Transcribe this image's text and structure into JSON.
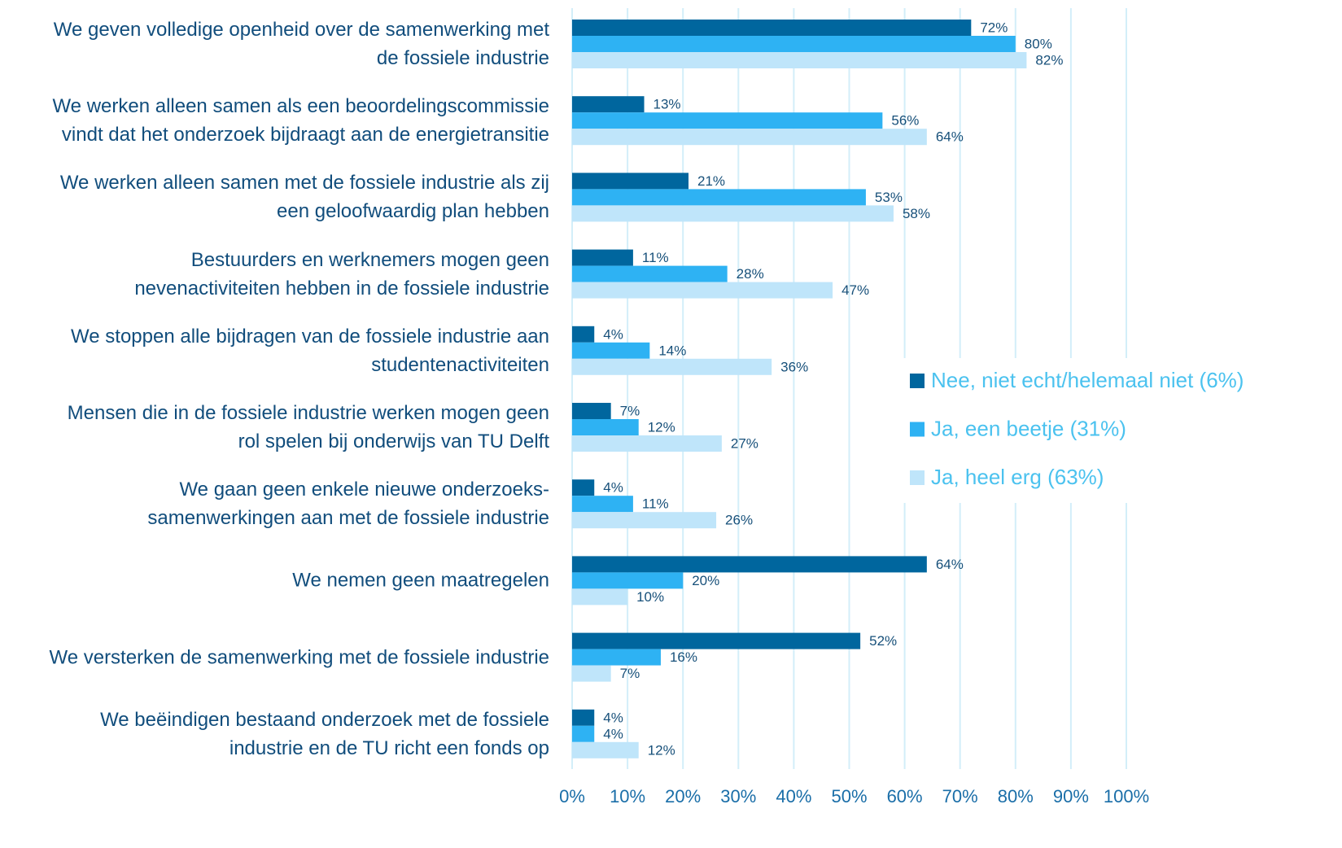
{
  "chart_data": {
    "type": "hbar",
    "categories": [
      "We geven volledige openheid over de samenwerking met\nde fossiele industrie",
      "We werken alleen samen als een beoordelingscommissie\nvindt dat het onderzoek bijdraagt aan de energietransitie",
      "We werken alleen samen met de fossiele industrie als zij\neen geloofwaardig plan hebben",
      "Bestuurders en werknemers mogen geen\nnevenactiviteiten hebben in de fossiele industrie",
      "We stoppen alle bijdragen van de fossiele industrie aan\nstudentenactiviteiten",
      "Mensen die in de fossiele industrie werken mogen geen\nrol spelen bij onderwijs van TU Delft",
      "We gaan geen enkele nieuwe onderzoeks-\nsamenwerkingen aan met de fossiele industrie",
      "We nemen geen maatregelen",
      "We versterken de samenwerking met de fossiele industrie",
      "We beëindigen bestaand onderzoek met de fossiele\nindustrie en de TU richt een fonds op"
    ],
    "series": [
      {
        "name": "Nee, niet echt/helemaal niet (6%)",
        "color": "#00669e",
        "values": [
          72,
          13,
          21,
          11,
          4,
          7,
          4,
          64,
          52,
          4
        ],
        "value_labels": [
          "72%",
          "13%",
          "21%",
          "11%",
          "4%",
          "7%",
          "4%",
          "64%",
          "52%",
          "4%"
        ]
      },
      {
        "name": "Ja, een beetje (31%)",
        "color": "#2eb2f3",
        "values": [
          80,
          56,
          53,
          28,
          14,
          12,
          11,
          20,
          16,
          4
        ],
        "value_labels": [
          "80%",
          "56%",
          "53%",
          "28%",
          "14%",
          "12%",
          "11%",
          "20%",
          "16%",
          "4%"
        ]
      },
      {
        "name": "Ja, heel erg (63%)",
        "color": "#bfe5fa",
        "values": [
          82,
          64,
          58,
          47,
          36,
          27,
          26,
          10,
          7,
          12
        ],
        "value_labels": [
          "82%",
          "64%",
          "58%",
          "47%",
          "36%",
          "27%",
          "26%",
          "10%",
          "7%",
          "12%"
        ]
      }
    ],
    "xlim": [
      0,
      100
    ],
    "xticks": [
      {
        "value": 0,
        "label": "0%"
      },
      {
        "value": 10,
        "label": "10%"
      },
      {
        "value": 20,
        "label": "20%"
      },
      {
        "value": 30,
        "label": "30%"
      },
      {
        "value": 40,
        "label": "40%"
      },
      {
        "value": 50,
        "label": "50%"
      },
      {
        "value": 60,
        "label": "60%"
      },
      {
        "value": 70,
        "label": "70%"
      },
      {
        "value": 80,
        "label": "80%"
      },
      {
        "value": 90,
        "label": "90%"
      },
      {
        "value": 100,
        "label": "100%"
      }
    ],
    "grid": true
  }
}
